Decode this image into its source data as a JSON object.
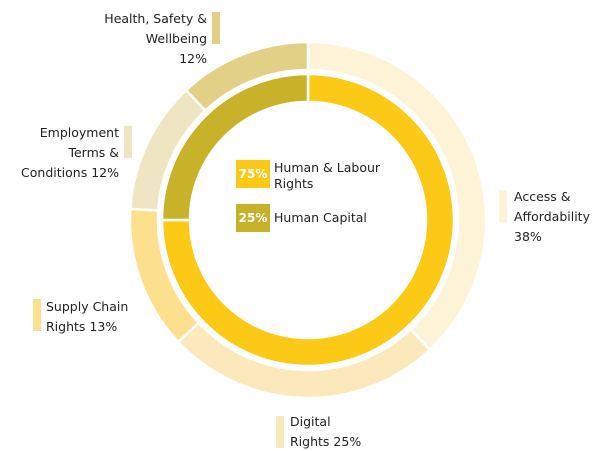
{
  "chart_data": {
    "type": "donut",
    "rings": [
      {
        "categories": [
          "Human & Labour Rights",
          "Human Capital"
        ],
        "values": [
          75,
          25
        ],
        "value_labels": [
          "75%",
          "25%"
        ],
        "colors": [
          "#fcc917",
          "#c8b22a"
        ]
      },
      {
        "categories": [
          "Access & Affordability",
          "Digital Rights",
          "Supply Chain Rights",
          "Employment Terms & Conditions",
          "Health, Safety & Wellbeing"
        ],
        "values": [
          38,
          25,
          13,
          12,
          12
        ],
        "value_labels": [
          "38%",
          "25%",
          "13%",
          "12%",
          "12%"
        ],
        "colors": [
          "#fdf3d6",
          "#fbe9bb",
          "#fde08e",
          "#efe5c3",
          "#e2d086"
        ]
      }
    ]
  }
}
